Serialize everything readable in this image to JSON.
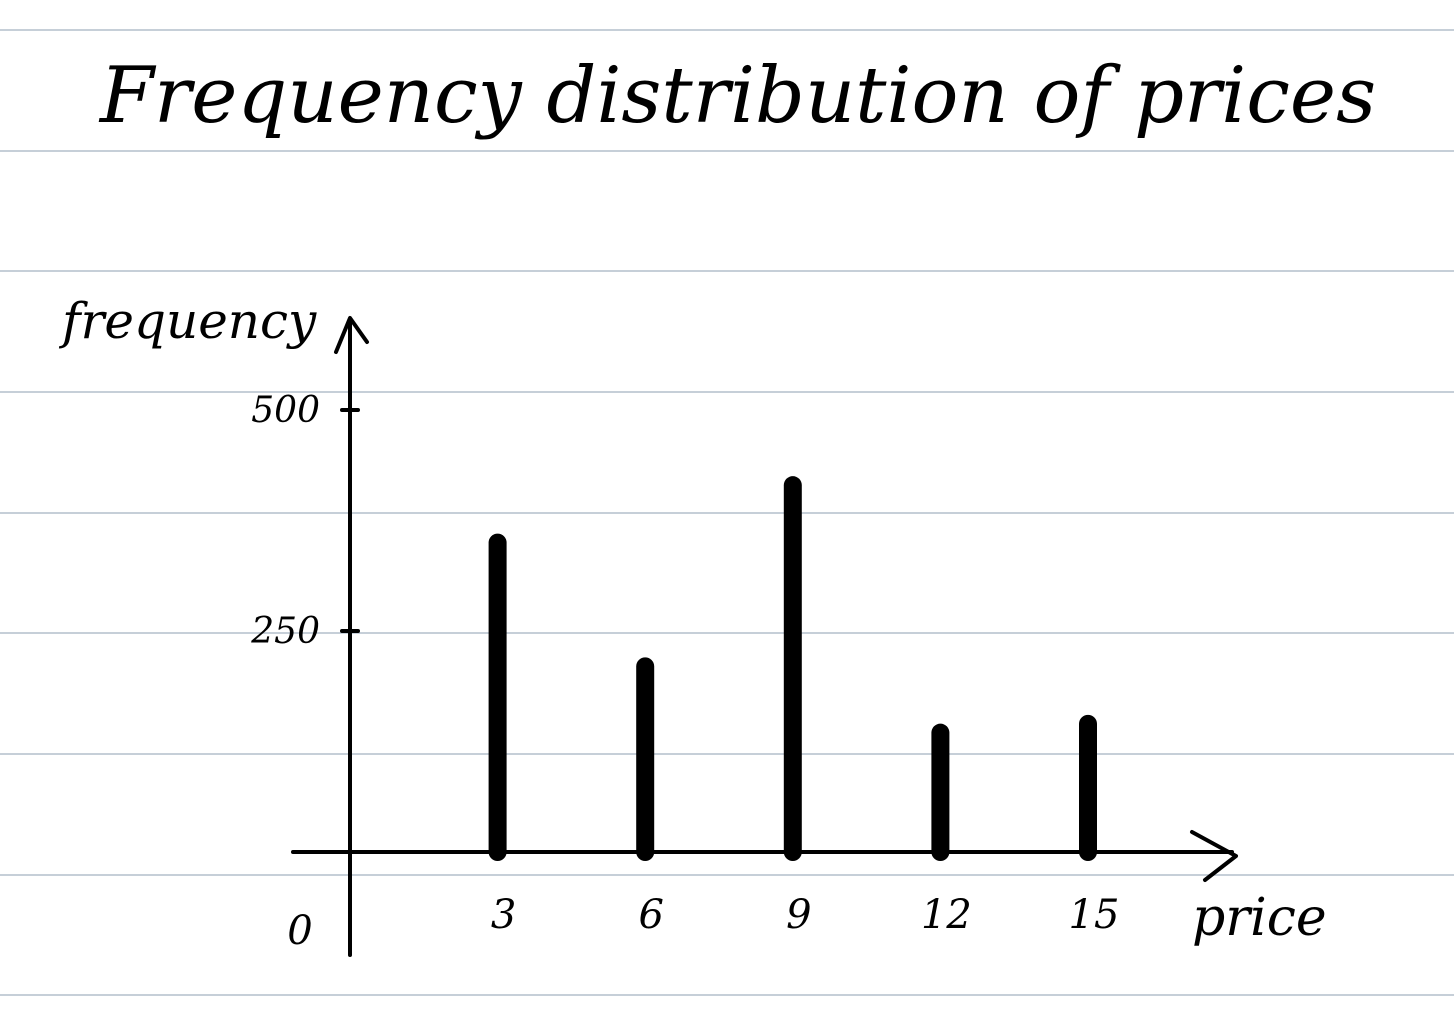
{
  "page": {
    "background": "#ffffff",
    "ruled_line_color": "#b3bfcc",
    "ink_color": "#000000"
  },
  "chart_data": {
    "type": "bar",
    "title": "Frequency distribution of prices",
    "xlabel": "price",
    "ylabel": "frequency",
    "origin_label": "0",
    "categories": [
      "3",
      "6",
      "9",
      "12",
      "15"
    ],
    "x": [
      3,
      6,
      9,
      12,
      15
    ],
    "values": [
      350,
      210,
      415,
      135,
      145
    ],
    "xlim": [
      -0.1,
      17.5
    ],
    "ylim": [
      -100,
      550
    ],
    "y_ticks": [
      {
        "value": 500,
        "label": "500"
      },
      {
        "value": 250,
        "label": "250"
      }
    ],
    "grid": false,
    "legend": "none"
  }
}
